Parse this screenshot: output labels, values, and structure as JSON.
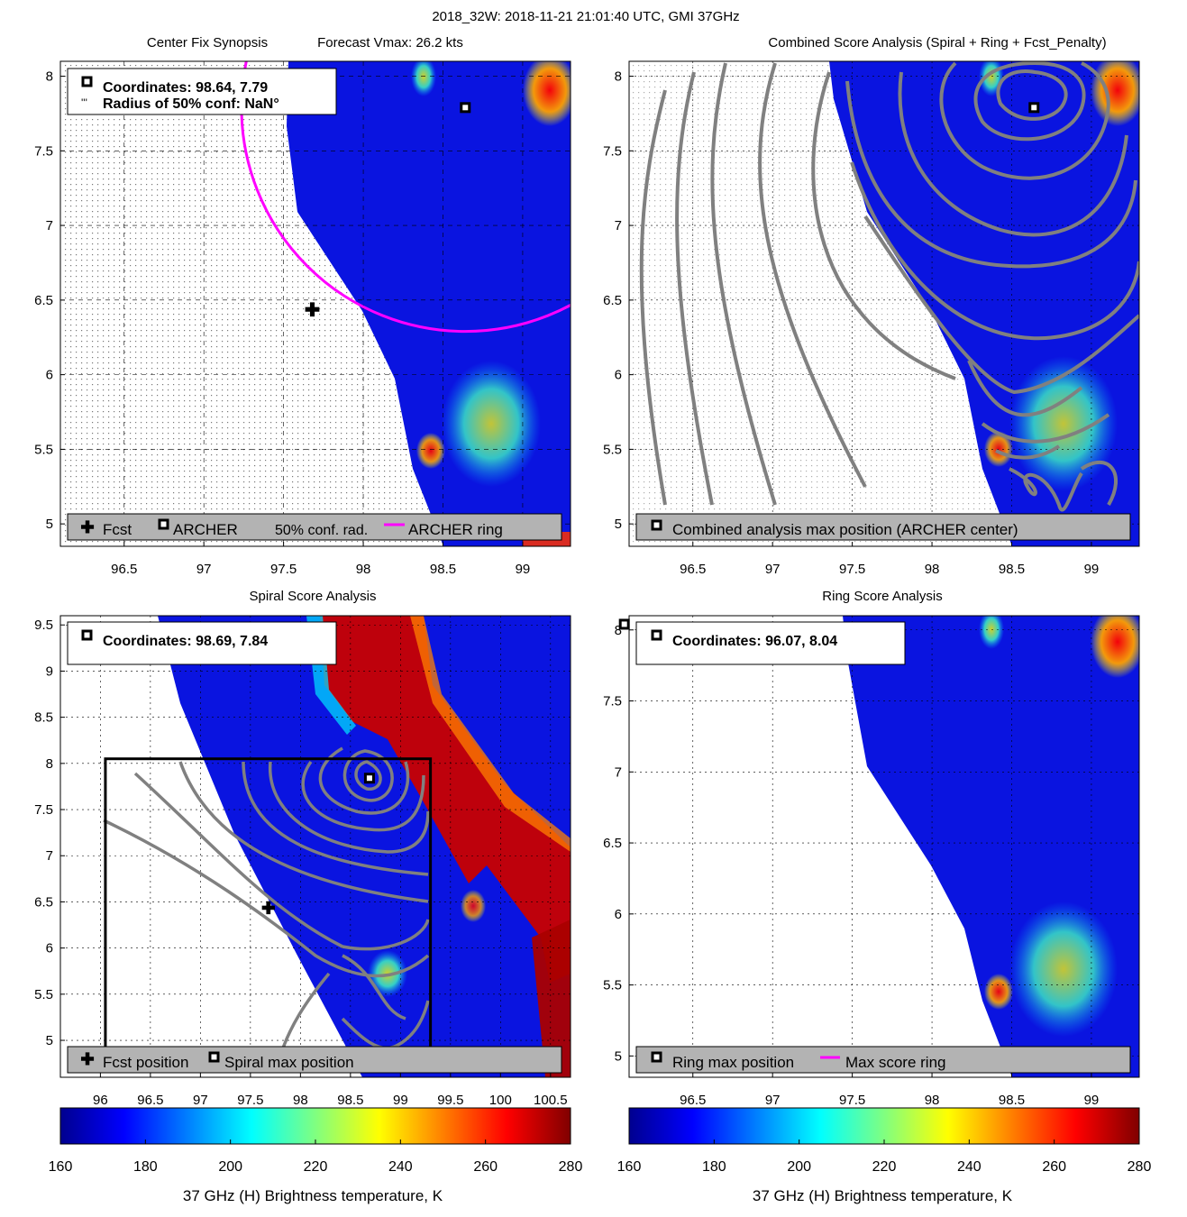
{
  "figure_title": "2018_32W: 2018-11-21 21:01:40 UTC, GMI 37GHz",
  "colors": {
    "swath_base": "#0a14e0",
    "ring": "#ff00ff",
    "contour": "#808080",
    "legend_bg": "#b3b3b3"
  },
  "chart_data": [
    {
      "id": "synopsis",
      "type": "heatmap",
      "title_left": "Center Fix Synopsis",
      "title_right": "Forecast Vmax: 26.2 kts",
      "x_ticks": [
        "96.5",
        "97",
        "97.5",
        "98",
        "98.5",
        "99"
      ],
      "y_ticks": [
        "5",
        "5.5",
        "6",
        "6.5",
        "7",
        "7.5",
        "8"
      ],
      "xlim": [
        96.1,
        99.3
      ],
      "ylim": [
        4.85,
        8.1
      ],
      "archer_center": [
        98.64,
        7.79
      ],
      "forecast_position": [
        97.68,
        6.43
      ],
      "archer_ring": {
        "center": [
          98.64,
          7.79
        ],
        "radius_deg": 1.5
      },
      "info": {
        "coordinates": "Coordinates: 98.64, 7.79",
        "radius": "Radius of 50% conf: NaN°"
      },
      "legend": {
        "fcst": "Fcst",
        "archer": "ARCHER",
        "conf": "50% conf. rad.",
        "ring": "ARCHER ring"
      }
    },
    {
      "id": "combined",
      "type": "heatmap",
      "title": "Combined Score Analysis (Spiral + Ring + Fcst_Penalty)",
      "x_ticks": [
        "96.5",
        "97",
        "97.5",
        "98",
        "98.5",
        "99"
      ],
      "y_ticks": [
        "5",
        "5.5",
        "6",
        "6.5",
        "7",
        "7.5",
        "8"
      ],
      "xlim": [
        96.1,
        99.3
      ],
      "ylim": [
        4.85,
        8.1
      ],
      "max_position": [
        98.64,
        7.79
      ],
      "legend": {
        "max": "Combined analysis max position (ARCHER center)"
      }
    },
    {
      "id": "spiral",
      "type": "heatmap",
      "title": "Spiral Score Analysis",
      "x_ticks": [
        "96",
        "96.5",
        "97",
        "97.5",
        "98",
        "98.5",
        "99",
        "99.5",
        "100",
        "100.5"
      ],
      "y_ticks": [
        "5",
        "5.5",
        "6",
        "6.5",
        "7",
        "7.5",
        "8",
        "8.5",
        "9",
        "9.5"
      ],
      "xlim": [
        95.6,
        100.7
      ],
      "ylim": [
        4.6,
        9.6
      ],
      "max_position": [
        98.69,
        7.84
      ],
      "forecast_position": [
        97.68,
        6.43
      ],
      "search_box": {
        "x": [
          96.05,
          99.3
        ],
        "y": [
          4.85,
          8.05
        ]
      },
      "info": {
        "coordinates": "Coordinates: 98.69, 7.84"
      },
      "legend": {
        "fcst": "Fcst position",
        "max": "Spiral max position"
      }
    },
    {
      "id": "ring",
      "type": "heatmap",
      "title": "Ring Score Analysis",
      "x_ticks": [
        "96.5",
        "97",
        "97.5",
        "98",
        "98.5",
        "99"
      ],
      "y_ticks": [
        "5",
        "5.5",
        "6",
        "6.5",
        "7",
        "7.5",
        "8"
      ],
      "xlim": [
        96.1,
        99.3
      ],
      "ylim": [
        4.85,
        8.1
      ],
      "max_position": [
        96.07,
        8.04
      ],
      "info": {
        "coordinates": "Coordinates: 96.07, 8.04"
      },
      "legend": {
        "max": "Ring max position",
        "ring": "Max score ring"
      }
    }
  ],
  "colorbars": [
    {
      "ticks": [
        "160",
        "180",
        "200",
        "220",
        "240",
        "260",
        "280"
      ],
      "range": [
        160,
        280
      ],
      "label": "37 GHz (H) Brightness temperature, K"
    },
    {
      "ticks": [
        "160",
        "180",
        "200",
        "220",
        "240",
        "260",
        "280"
      ],
      "range": [
        160,
        280
      ],
      "label": "37 GHz (H) Brightness temperature, K"
    }
  ]
}
